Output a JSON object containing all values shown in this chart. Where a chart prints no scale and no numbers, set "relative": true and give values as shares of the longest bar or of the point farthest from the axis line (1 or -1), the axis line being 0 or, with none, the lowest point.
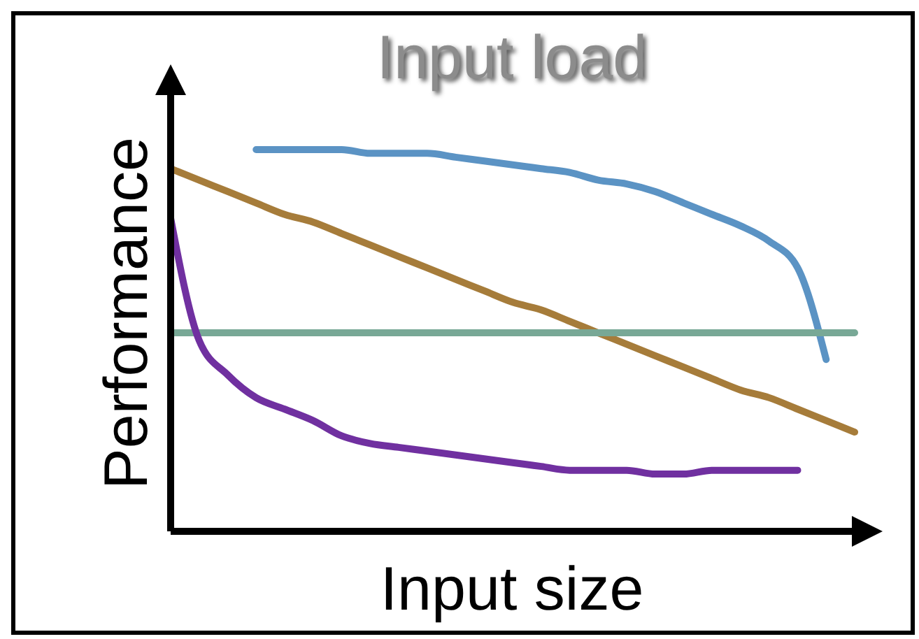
{
  "chart_data": {
    "type": "line",
    "title": "Input load",
    "xlabel": "Input size",
    "ylabel": "Performance",
    "relative": true,
    "marker": "none",
    "line_style": "solid",
    "categories": [
      null,
      null,
      null,
      null,
      null,
      null,
      null,
      null,
      null,
      null,
      null,
      null,
      null,
      null,
      null,
      null,
      null,
      null,
      null,
      null,
      null,
      null,
      null,
      null,
      null
    ],
    "series": [
      {
        "color": "#5b93c4",
        "values": [
          null,
          null,
          null,
          1.0,
          1.0,
          1.0,
          1.0,
          0.99,
          0.99,
          0.99,
          0.98,
          0.97,
          0.96,
          0.95,
          0.94,
          0.92,
          0.91,
          0.89,
          0.86,
          0.83,
          0.8,
          0.76,
          0.69,
          0.45,
          null
        ]
      },
      {
        "color": "#a67c3a",
        "values": [
          0.95,
          0.92,
          0.89,
          0.86,
          0.83,
          0.81,
          0.78,
          0.75,
          0.72,
          0.69,
          0.66,
          0.63,
          0.6,
          0.58,
          0.55,
          0.52,
          0.49,
          0.46,
          0.43,
          0.4,
          0.37,
          0.35,
          0.32,
          0.29,
          0.26
        ]
      },
      {
        "color": "#78a896",
        "values": [
          0.52,
          0.52,
          0.52,
          0.52,
          0.52,
          0.52,
          0.52,
          0.52,
          0.52,
          0.52,
          0.52,
          0.52,
          0.52,
          0.52,
          0.52,
          0.52,
          0.52,
          0.52,
          0.52,
          0.52,
          0.52,
          0.52,
          0.52,
          0.52,
          0.52
        ]
      },
      {
        "color": "#7030a0",
        "values": [
          0.82,
          0.5,
          0.41,
          0.35,
          0.32,
          0.29,
          0.25,
          0.23,
          0.22,
          0.21,
          0.2,
          0.19,
          0.18,
          0.17,
          0.16,
          0.16,
          0.16,
          0.15,
          0.15,
          0.16,
          0.16,
          0.16,
          0.16,
          null,
          null
        ]
      }
    ]
  }
}
